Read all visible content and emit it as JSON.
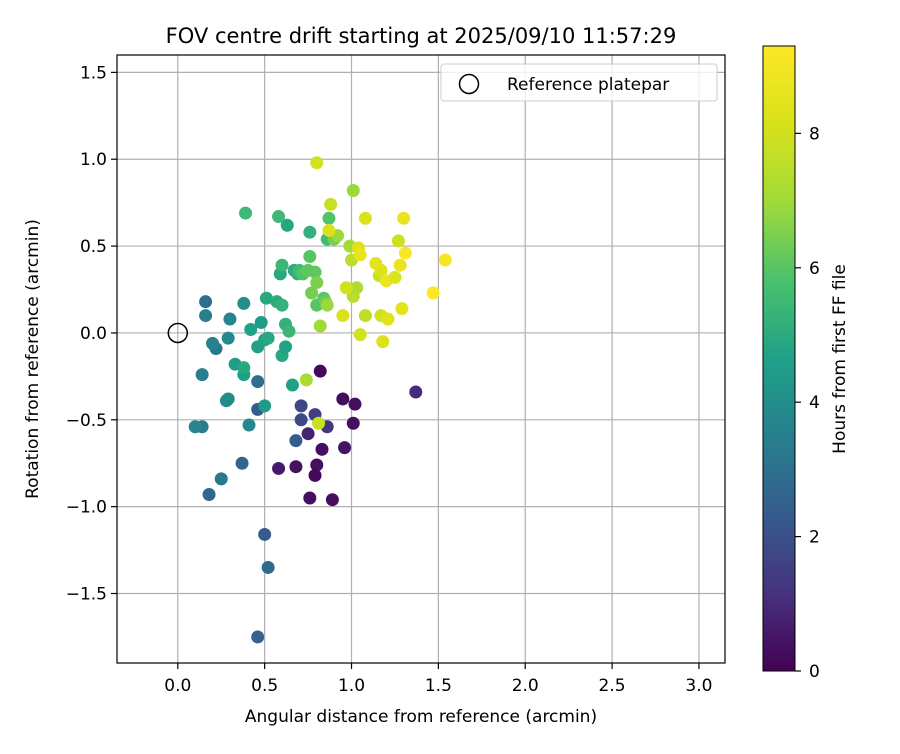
{
  "chart_data": {
    "type": "scatter",
    "title": "FOV centre drift starting at 2025/09/10 11:57:29",
    "xlabel": "Angular distance from reference (arcmin)",
    "ylabel": "Rotation from reference (arcmin)",
    "xlim": [
      -0.35,
      3.15
    ],
    "ylim": [
      -1.9,
      1.6
    ],
    "xticks": [
      0.0,
      0.5,
      1.0,
      1.5,
      2.0,
      2.5,
      3.0
    ],
    "yticks": [
      -1.5,
      -1.0,
      -0.5,
      0.0,
      0.5,
      1.0,
      1.5
    ],
    "xtick_labels": [
      "0.0",
      "0.5",
      "1.0",
      "1.5",
      "2.0",
      "2.5",
      "3.0"
    ],
    "ytick_labels": [
      "−1.5",
      "−1.0",
      "−0.5",
      "0.0",
      "0.5",
      "1.0",
      "1.5"
    ],
    "grid": true,
    "legend": {
      "position": "top-right",
      "entries": [
        "Reference platepar"
      ]
    },
    "reference_point": {
      "x": 0.0,
      "y": 0.0,
      "marker": "open-circle",
      "color": "#000000"
    },
    "colorbar": {
      "label": "Hours from first FF file",
      "colormap": "viridis",
      "range": [
        0,
        9.3
      ],
      "ticks": [
        0,
        2,
        4,
        6,
        8
      ],
      "tick_labels": [
        "0",
        "2",
        "4",
        "6",
        "8"
      ]
    },
    "points": [
      {
        "x": 0.82,
        "y": -0.22,
        "t": 0.2
      },
      {
        "x": 0.95,
        "y": -0.38,
        "t": 0.3
      },
      {
        "x": 1.02,
        "y": -0.41,
        "t": 0.3
      },
      {
        "x": 1.01,
        "y": -0.52,
        "t": 0.3
      },
      {
        "x": 0.83,
        "y": -0.67,
        "t": 0.3
      },
      {
        "x": 0.96,
        "y": -0.66,
        "t": 0.5
      },
      {
        "x": 0.8,
        "y": -0.76,
        "t": 0.3
      },
      {
        "x": 0.79,
        "y": -0.82,
        "t": 0.2
      },
      {
        "x": 0.76,
        "y": -0.95,
        "t": 0.3
      },
      {
        "x": 0.89,
        "y": -0.96,
        "t": 0.3
      },
      {
        "x": 0.68,
        "y": -0.77,
        "t": 0.4
      },
      {
        "x": 0.58,
        "y": -0.78,
        "t": 0.6
      },
      {
        "x": 0.75,
        "y": -0.58,
        "t": 0.8
      },
      {
        "x": 1.37,
        "y": -0.34,
        "t": 1.0
      },
      {
        "x": 0.86,
        "y": -0.54,
        "t": 1.3
      },
      {
        "x": 0.79,
        "y": -0.47,
        "t": 1.5
      },
      {
        "x": 0.71,
        "y": -0.5,
        "t": 1.8
      },
      {
        "x": 0.71,
        "y": -0.42,
        "t": 1.8
      },
      {
        "x": 0.68,
        "y": -0.62,
        "t": 2.3
      },
      {
        "x": 0.46,
        "y": -0.44,
        "t": 2.3
      },
      {
        "x": 0.5,
        "y": -1.16,
        "t": 2.3
      },
      {
        "x": 0.46,
        "y": -1.75,
        "t": 2.5
      },
      {
        "x": 0.52,
        "y": -1.35,
        "t": 2.8
      },
      {
        "x": 0.37,
        "y": -0.75,
        "t": 2.6
      },
      {
        "x": 0.18,
        "y": -0.93,
        "t": 2.7
      },
      {
        "x": 0.25,
        "y": -0.84,
        "t": 3.3
      },
      {
        "x": 0.14,
        "y": -0.54,
        "t": 3.4
      },
      {
        "x": 0.1,
        "y": -0.54,
        "t": 3.7
      },
      {
        "x": 0.14,
        "y": -0.24,
        "t": 3.5
      },
      {
        "x": 0.46,
        "y": -0.28,
        "t": 3.0
      },
      {
        "x": 0.29,
        "y": -0.38,
        "t": 3.8
      },
      {
        "x": 0.28,
        "y": -0.39,
        "t": 3.9
      },
      {
        "x": 0.41,
        "y": -0.53,
        "t": 3.8
      },
      {
        "x": 0.5,
        "y": -0.42,
        "t": 4.4
      },
      {
        "x": 0.22,
        "y": -0.09,
        "t": 3.2
      },
      {
        "x": 0.2,
        "y": -0.06,
        "t": 3.6
      },
      {
        "x": 0.29,
        "y": -0.03,
        "t": 3.8
      },
      {
        "x": 0.16,
        "y": 0.18,
        "t": 3.0
      },
      {
        "x": 0.16,
        "y": 0.1,
        "t": 3.5
      },
      {
        "x": 0.3,
        "y": 0.08,
        "t": 3.7
      },
      {
        "x": 0.38,
        "y": 0.17,
        "t": 4.0
      },
      {
        "x": 0.33,
        "y": -0.18,
        "t": 4.5
      },
      {
        "x": 0.38,
        "y": -0.24,
        "t": 4.6
      },
      {
        "x": 0.38,
        "y": -0.2,
        "t": 4.9
      },
      {
        "x": 0.42,
        "y": 0.02,
        "t": 4.7
      },
      {
        "x": 0.46,
        "y": -0.08,
        "t": 4.6
      },
      {
        "x": 0.48,
        "y": 0.06,
        "t": 4.5
      },
      {
        "x": 0.5,
        "y": -0.04,
        "t": 4.7
      },
      {
        "x": 0.52,
        "y": -0.03,
        "t": 4.9
      },
      {
        "x": 0.51,
        "y": 0.2,
        "t": 4.9
      },
      {
        "x": 0.57,
        "y": 0.18,
        "t": 5.0
      },
      {
        "x": 0.6,
        "y": -0.13,
        "t": 4.9
      },
      {
        "x": 0.62,
        "y": -0.08,
        "t": 4.7
      },
      {
        "x": 0.62,
        "y": 0.05,
        "t": 5.2
      },
      {
        "x": 0.64,
        "y": 0.01,
        "t": 5.4
      },
      {
        "x": 0.6,
        "y": 0.16,
        "t": 5.2
      },
      {
        "x": 0.59,
        "y": 0.34,
        "t": 4.9
      },
      {
        "x": 0.6,
        "y": 0.39,
        "t": 5.4
      },
      {
        "x": 0.63,
        "y": 0.62,
        "t": 4.8
      },
      {
        "x": 0.66,
        "y": -0.3,
        "t": 4.7
      },
      {
        "x": 0.67,
        "y": 0.36,
        "t": 5.0
      },
      {
        "x": 0.69,
        "y": 0.34,
        "t": 5.2
      },
      {
        "x": 0.7,
        "y": 0.36,
        "t": 5.6
      },
      {
        "x": 0.72,
        "y": 0.34,
        "t": 5.9
      },
      {
        "x": 0.75,
        "y": 0.36,
        "t": 6.1
      },
      {
        "x": 0.76,
        "y": 0.58,
        "t": 5.2
      },
      {
        "x": 0.58,
        "y": 0.67,
        "t": 5.5
      },
      {
        "x": 0.39,
        "y": 0.69,
        "t": 5.5
      },
      {
        "x": 0.76,
        "y": 0.44,
        "t": 6.0
      },
      {
        "x": 0.79,
        "y": 0.35,
        "t": 6.1
      },
      {
        "x": 0.77,
        "y": 0.23,
        "t": 6.4
      },
      {
        "x": 0.8,
        "y": 0.29,
        "t": 6.5
      },
      {
        "x": 0.8,
        "y": 0.16,
        "t": 6.0
      },
      {
        "x": 0.84,
        "y": 0.2,
        "t": 6.0
      },
      {
        "x": 0.85,
        "y": 0.18,
        "t": 6.3
      },
      {
        "x": 0.86,
        "y": 0.16,
        "t": 6.9
      },
      {
        "x": 0.82,
        "y": 0.04,
        "t": 7.0
      },
      {
        "x": 0.74,
        "y": -0.27,
        "t": 7.2
      },
      {
        "x": 0.81,
        "y": -0.52,
        "t": 7.8
      },
      {
        "x": 0.86,
        "y": 0.54,
        "t": 5.6
      },
      {
        "x": 0.87,
        "y": 0.66,
        "t": 5.9
      },
      {
        "x": 0.9,
        "y": 0.54,
        "t": 6.4
      },
      {
        "x": 0.92,
        "y": 0.56,
        "t": 6.9
      },
      {
        "x": 0.8,
        "y": 0.98,
        "t": 8.0
      },
      {
        "x": 0.88,
        "y": 0.74,
        "t": 7.8
      },
      {
        "x": 0.87,
        "y": 0.59,
        "t": 8.2
      },
      {
        "x": 1.01,
        "y": 0.82,
        "t": 6.9
      },
      {
        "x": 0.99,
        "y": 0.5,
        "t": 7.1
      },
      {
        "x": 1.0,
        "y": 0.42,
        "t": 7.5
      },
      {
        "x": 1.01,
        "y": 0.21,
        "t": 7.5
      },
      {
        "x": 1.03,
        "y": 0.26,
        "t": 7.3
      },
      {
        "x": 0.97,
        "y": 0.26,
        "t": 8.0
      },
      {
        "x": 0.95,
        "y": 0.1,
        "t": 8.2
      },
      {
        "x": 1.04,
        "y": 0.49,
        "t": 8.3
      },
      {
        "x": 1.05,
        "y": 0.45,
        "t": 8.6
      },
      {
        "x": 1.08,
        "y": 0.66,
        "t": 8.2
      },
      {
        "x": 1.08,
        "y": 0.1,
        "t": 7.6
      },
      {
        "x": 1.05,
        "y": -0.01,
        "t": 8.0
      },
      {
        "x": 1.14,
        "y": 0.4,
        "t": 8.5
      },
      {
        "x": 1.16,
        "y": 0.33,
        "t": 7.8
      },
      {
        "x": 1.17,
        "y": 0.36,
        "t": 8.3
      },
      {
        "x": 1.17,
        "y": 0.1,
        "t": 8.0
      },
      {
        "x": 1.18,
        "y": -0.05,
        "t": 8.2
      },
      {
        "x": 1.2,
        "y": 0.3,
        "t": 8.8
      },
      {
        "x": 1.21,
        "y": 0.08,
        "t": 8.4
      },
      {
        "x": 1.25,
        "y": 0.32,
        "t": 8.3
      },
      {
        "x": 1.27,
        "y": 0.53,
        "t": 7.9
      },
      {
        "x": 1.28,
        "y": 0.39,
        "t": 8.7
      },
      {
        "x": 1.29,
        "y": 0.14,
        "t": 8.5
      },
      {
        "x": 1.3,
        "y": 0.66,
        "t": 8.7
      },
      {
        "x": 1.31,
        "y": 0.46,
        "t": 9.2
      },
      {
        "x": 1.47,
        "y": 0.23,
        "t": 9.3
      },
      {
        "x": 1.54,
        "y": 0.42,
        "t": 9.1
      }
    ]
  }
}
